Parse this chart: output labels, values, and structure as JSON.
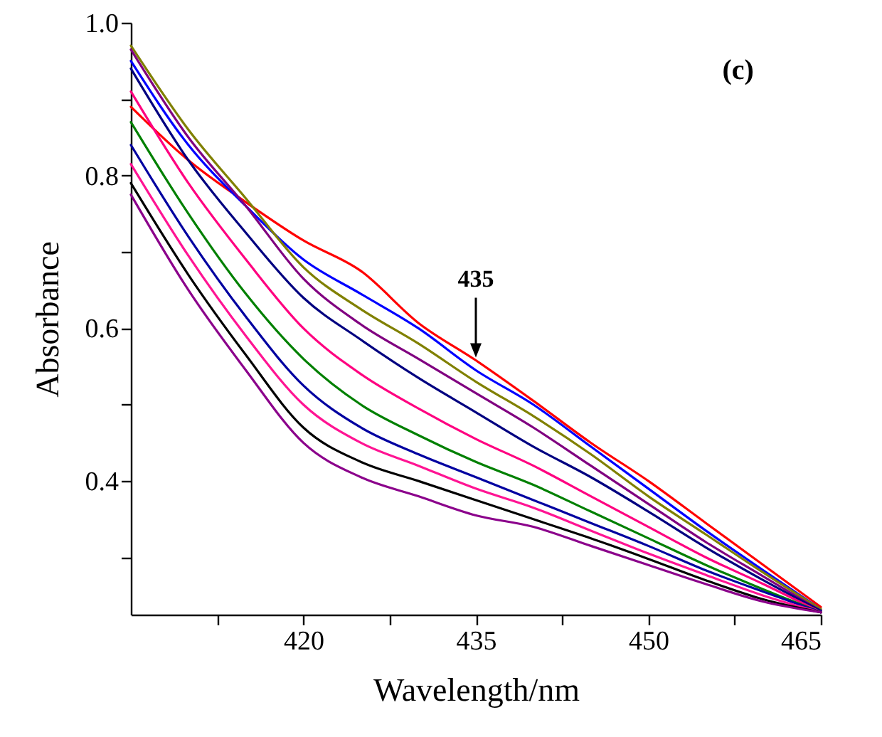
{
  "chart_data": {
    "type": "line",
    "xlabel": "Wavelength/nm",
    "ylabel": "Absorbance",
    "x": [
      405,
      410,
      415,
      420,
      425,
      430,
      435,
      440,
      445,
      450,
      455,
      460,
      465
    ],
    "series": [
      {
        "color": "#ff0000",
        "values": [
          0.89,
          0.82,
          0.765,
          0.715,
          0.675,
          0.607,
          0.558,
          0.505,
          0.45,
          0.4,
          0.345,
          0.29,
          0.235
        ]
      },
      {
        "color": "#0000ff",
        "values": [
          0.95,
          0.84,
          0.76,
          0.69,
          0.645,
          0.6,
          0.545,
          0.5,
          0.445,
          0.39,
          0.335,
          0.283,
          0.232
        ]
      },
      {
        "color": "#808000",
        "values": [
          0.97,
          0.86,
          0.77,
          0.68,
          0.625,
          0.58,
          0.53,
          0.485,
          0.435,
          0.38,
          0.33,
          0.28,
          0.232
        ]
      },
      {
        "color": "#800080",
        "values": [
          0.965,
          0.85,
          0.76,
          0.665,
          0.605,
          0.56,
          0.515,
          0.47,
          0.42,
          0.37,
          0.32,
          0.275,
          0.23
        ]
      },
      {
        "color": "#000080",
        "values": [
          0.94,
          0.82,
          0.725,
          0.64,
          0.585,
          0.535,
          0.49,
          0.445,
          0.405,
          0.36,
          0.313,
          0.27,
          0.23
        ]
      },
      {
        "color": "#ff0080",
        "values": [
          0.91,
          0.79,
          0.69,
          0.6,
          0.54,
          0.495,
          0.455,
          0.42,
          0.38,
          0.34,
          0.3,
          0.265,
          0.228
        ]
      },
      {
        "color": "#008000",
        "values": [
          0.87,
          0.75,
          0.645,
          0.56,
          0.5,
          0.46,
          0.425,
          0.395,
          0.36,
          0.325,
          0.29,
          0.258,
          0.228
        ]
      },
      {
        "color": "#0000a0",
        "values": [
          0.84,
          0.72,
          0.615,
          0.525,
          0.47,
          0.435,
          0.405,
          0.375,
          0.345,
          0.315,
          0.283,
          0.255,
          0.228
        ]
      },
      {
        "color": "#ff1493",
        "values": [
          0.815,
          0.695,
          0.59,
          0.5,
          0.45,
          0.42,
          0.39,
          0.365,
          0.335,
          0.305,
          0.277,
          0.25,
          0.228
        ]
      },
      {
        "color": "#000000",
        "values": [
          0.79,
          0.67,
          0.565,
          0.47,
          0.425,
          0.4,
          0.375,
          0.35,
          0.325,
          0.298,
          0.27,
          0.245,
          0.228
        ]
      },
      {
        "color": "#8b008b",
        "values": [
          0.775,
          0.65,
          0.545,
          0.45,
          0.405,
          0.38,
          0.355,
          0.34,
          0.315,
          0.29,
          0.265,
          0.242,
          0.228
        ]
      }
    ],
    "xlim": [
      405,
      465
    ],
    "ylim": [
      0.225,
      1.0
    ],
    "xticks": [
      {
        "value": 412.5,
        "label": null
      },
      420,
      {
        "value": 427.5,
        "label": null
      },
      435,
      {
        "value": 442.5,
        "label": null
      },
      450,
      {
        "value": 457.5,
        "label": null
      },
      465
    ],
    "yticks": [
      {
        "value": 0.3,
        "label": null
      },
      0.4,
      {
        "value": 0.5,
        "label": null
      },
      0.6,
      {
        "value": 0.7,
        "label": null
      },
      0.8,
      {
        "value": 0.9,
        "label": null
      },
      {
        "value": 1,
        "label": "1.0"
      }
    ],
    "annotations": [
      "(c)",
      {
        "text": "435",
        "x": 435,
        "y": 0.558
      }
    ],
    "grid": false,
    "line_style": "solid"
  }
}
